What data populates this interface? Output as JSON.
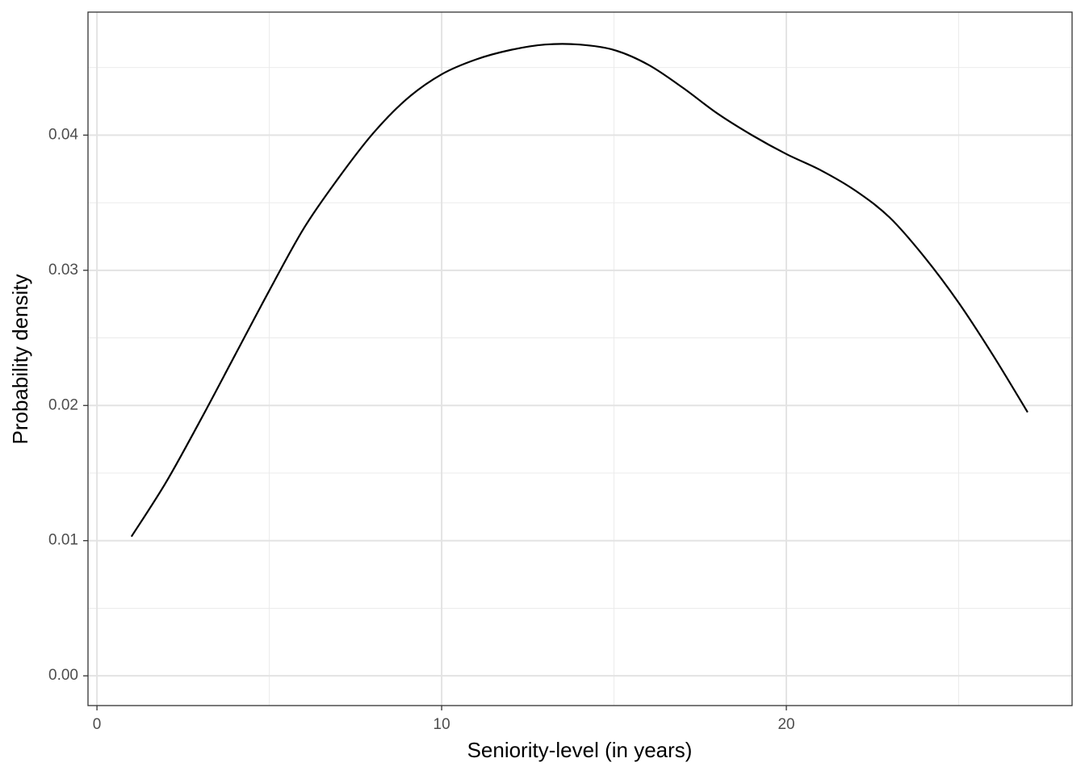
{
  "chart_data": {
    "type": "line",
    "x_label": "Seniority-level (in years)",
    "y_label": "Probability density",
    "x": [
      1,
      2,
      3,
      4,
      5,
      6,
      7,
      8,
      9,
      10,
      11,
      12,
      13,
      14,
      15,
      16,
      17,
      18,
      19,
      20,
      21,
      22,
      23,
      24,
      25,
      26,
      27
    ],
    "series": [
      {
        "color": "#000000",
        "values": [
          0.0103,
          0.0143,
          0.0189,
          0.0237,
          0.0285,
          0.0331,
          0.0368,
          0.0401,
          0.0427,
          0.0445,
          0.0456,
          0.0463,
          0.0467,
          0.0467,
          0.0463,
          0.0452,
          0.0435,
          0.0416,
          0.04,
          0.0386,
          0.0374,
          0.0359,
          0.0339,
          0.031,
          0.0276,
          0.0237,
          0.0195
        ]
      }
    ],
    "xlim": [
      -0.26,
      28.29
    ],
    "ylim": [
      -0.0022,
      0.0491
    ],
    "xticks": [
      0,
      10,
      20
    ],
    "yticks": [
      {
        "value": 0,
        "label": "0.00"
      },
      0.01,
      0.02,
      0.03,
      0.04
    ],
    "x_minor_ticks": [
      5,
      15,
      25
    ],
    "y_minor_ticks": [
      0.005,
      0.015,
      0.025,
      0.035,
      0.045
    ],
    "grid": true
  }
}
